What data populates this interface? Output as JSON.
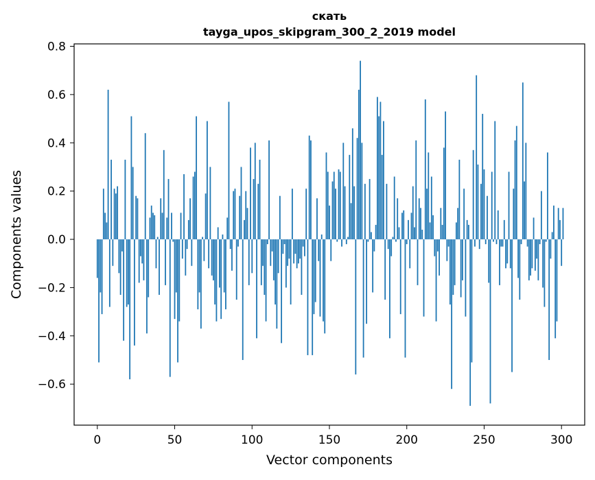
{
  "chart_data": {
    "type": "bar",
    "title": "скать",
    "subtitle": "tayga_upos_skipgram_300_2_2019 model",
    "xlabel": "Vector components",
    "ylabel": "Components values",
    "xlim": [
      -15,
      315
    ],
    "ylim": [
      -0.77,
      0.81
    ],
    "x_ticks": [
      0,
      50,
      100,
      150,
      200,
      250,
      300
    ],
    "x_tick_labels": [
      "0",
      "50",
      "100",
      "150",
      "200",
      "250",
      "300"
    ],
    "y_ticks": [
      -0.6,
      -0.4,
      -0.2,
      0.0,
      0.2,
      0.4,
      0.6,
      0.8
    ],
    "y_tick_labels": [
      "−0.6",
      "−0.4",
      "−0.2",
      "0.0",
      "0.2",
      "0.4",
      "0.6",
      "0.8"
    ],
    "bar_color": "#1f77b4",
    "grid": false,
    "series": [
      {
        "values": [
          -0.16,
          -0.51,
          -0.22,
          -0.31,
          0.21,
          0.11,
          0.07,
          0.62,
          -0.28,
          0.33,
          -0.11,
          0.21,
          0.19,
          0.22,
          -0.14,
          -0.23,
          -0.05,
          -0.42,
          0.33,
          -0.28,
          -0.27,
          -0.58,
          0.51,
          0.3,
          -0.44,
          0.18,
          0.17,
          -0.18,
          -0.07,
          -0.1,
          -0.17,
          0.44,
          -0.39,
          -0.24,
          0.09,
          0.14,
          0.11,
          0.1,
          -0.12,
          0.01,
          -0.23,
          0.17,
          0.11,
          0.37,
          -0.19,
          0.09,
          0.25,
          -0.57,
          0.11,
          -0.01,
          -0.33,
          -0.22,
          -0.51,
          -0.34,
          0.11,
          -0.08,
          0.27,
          -0.15,
          -0.04,
          0.08,
          0.17,
          -0.11,
          0.26,
          0.28,
          0.51,
          -0.29,
          -0.22,
          -0.37,
          0.01,
          -0.09,
          0.19,
          0.49,
          -0.12,
          0.3,
          -0.15,
          -0.17,
          -0.27,
          -0.34,
          0.05,
          -0.2,
          -0.33,
          0.02,
          -0.22,
          -0.29,
          0.09,
          0.57,
          -0.04,
          -0.13,
          0.2,
          0.21,
          -0.25,
          -0.03,
          0.18,
          0.3,
          -0.5,
          0.08,
          0.2,
          0.13,
          -0.19,
          0.38,
          -0.14,
          0.25,
          0.4,
          -0.41,
          0.23,
          0.33,
          -0.19,
          -0.11,
          -0.23,
          -0.34,
          -0.02,
          0.41,
          -0.11,
          -0.05,
          -0.17,
          -0.27,
          -0.37,
          -0.14,
          0.18,
          -0.43,
          -0.06,
          -0.02,
          -0.2,
          -0.11,
          -0.08,
          -0.27,
          0.21,
          -0.1,
          -0.06,
          -0.12,
          -0.1,
          -0.08,
          -0.23,
          -0.03,
          -0.07,
          0.21,
          -0.48,
          0.43,
          0.41,
          -0.48,
          -0.31,
          -0.26,
          0.17,
          -0.09,
          -0.32,
          0.02,
          -0.34,
          -0.39,
          0.36,
          0.28,
          0.14,
          -0.09,
          0.24,
          0.28,
          0.21,
          -0.01,
          0.29,
          0.28,
          -0.03,
          0.4,
          0.22,
          -0.02,
          0.01,
          0.35,
          0.15,
          0.46,
          0.22,
          -0.56,
          0.42,
          0.62,
          0.74,
          0.4,
          -0.49,
          0.23,
          -0.35,
          -0.01,
          0.25,
          0.03,
          -0.22,
          -0.05,
          0.06,
          0.59,
          0.51,
          0.57,
          0.35,
          0.49,
          -0.25,
          0.23,
          -0.04,
          -0.41,
          -0.07,
          0.01,
          0.26,
          -0.01,
          0.17,
          0.05,
          -0.31,
          0.11,
          0.12,
          -0.49,
          -0.02,
          0.08,
          -0.12,
          0.11,
          0.22,
          0.05,
          0.41,
          -0.19,
          0.17,
          0.13,
          0.04,
          -0.32,
          0.58,
          0.21,
          0.36,
          0.07,
          0.26,
          0.1,
          -0.07,
          -0.34,
          -0.05,
          -0.15,
          0.13,
          0.06,
          0.38,
          0.53,
          -0.09,
          -0.03,
          -0.27,
          -0.62,
          -0.23,
          -0.19,
          0.07,
          0.13,
          0.33,
          -0.24,
          -0.17,
          0.21,
          -0.32,
          0.08,
          0.06,
          -0.69,
          -0.51,
          0.37,
          -0.03,
          0.68,
          0.31,
          -0.04,
          0.23,
          0.52,
          0.29,
          -0.02,
          0.18,
          -0.18,
          -0.68,
          0.28,
          -0.01,
          0.49,
          -0.02,
          0.12,
          -0.19,
          -0.03,
          -0.03,
          0.08,
          -0.12,
          -0.1,
          0.28,
          -0.12,
          -0.55,
          0.21,
          0.41,
          0.47,
          -0.16,
          -0.25,
          -0.02,
          0.65,
          0.24,
          0.4,
          -0.03,
          -0.17,
          -0.15,
          -0.12,
          0.09,
          -0.13,
          -0.08,
          -0.17,
          -0.02,
          0.2,
          -0.2,
          -0.28,
          -0.01,
          0.36,
          -0.5,
          -0.08,
          0.03,
          0.14,
          -0.41,
          -0.34,
          0.13,
          0.08,
          -0.11,
          0.13
        ]
      }
    ]
  }
}
